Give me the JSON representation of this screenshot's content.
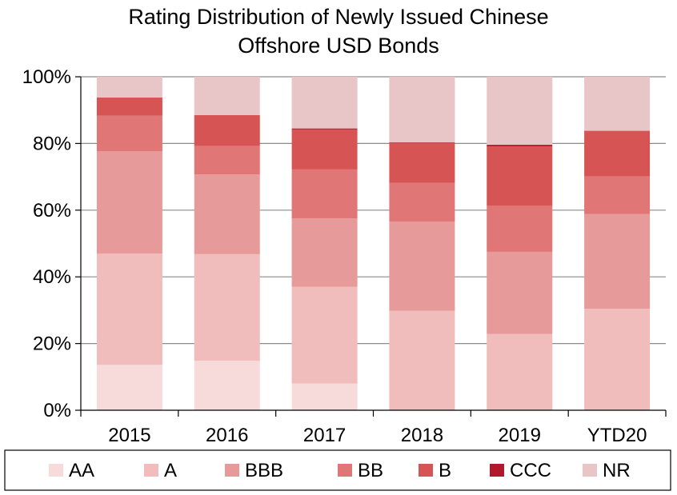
{
  "chart_data": {
    "type": "bar",
    "stacked": true,
    "title": "Rating Distribution of Newly Issued Chinese Offshore USD Bonds",
    "title_lines": [
      "Rating Distribution of Newly Issued Chinese",
      "Offshore USD Bonds"
    ],
    "ylim": [
      0,
      100
    ],
    "yticks": [
      "0%",
      "20%",
      "40%",
      "60%",
      "80%",
      "100%"
    ],
    "ytick_values": [
      0,
      20,
      40,
      60,
      80,
      100
    ],
    "grid": true,
    "legend_position": "bottom",
    "categories": [
      "2015",
      "2016",
      "2017",
      "2018",
      "2019",
      "YTD20"
    ],
    "series": [
      {
        "name": "AA",
        "color": "#f7dada",
        "values": [
          13.6,
          14.8,
          8.0,
          0.0,
          0.0,
          0.0
        ]
      },
      {
        "name": "A",
        "color": "#f1bcbc",
        "values": [
          33.4,
          32.0,
          29.0,
          29.8,
          22.9,
          30.4
        ]
      },
      {
        "name": "BBB",
        "color": "#e79a9a",
        "values": [
          30.7,
          23.9,
          20.5,
          26.8,
          24.6,
          28.4
        ]
      },
      {
        "name": "BB",
        "color": "#e07676",
        "values": [
          10.6,
          8.5,
          14.7,
          11.6,
          13.8,
          11.3
        ]
      },
      {
        "name": "B",
        "color": "#d65454",
        "values": [
          5.5,
          9.3,
          12.0,
          11.9,
          17.8,
          13.7
        ]
      },
      {
        "name": "CCC",
        "color": "#b0182b",
        "values": [
          0.0,
          0.0,
          0.3,
          0.2,
          0.5,
          0.0
        ]
      },
      {
        "name": "NR",
        "color": "#e8c5c6",
        "values": [
          6.2,
          11.5,
          15.5,
          19.7,
          20.4,
          16.2
        ]
      }
    ]
  }
}
